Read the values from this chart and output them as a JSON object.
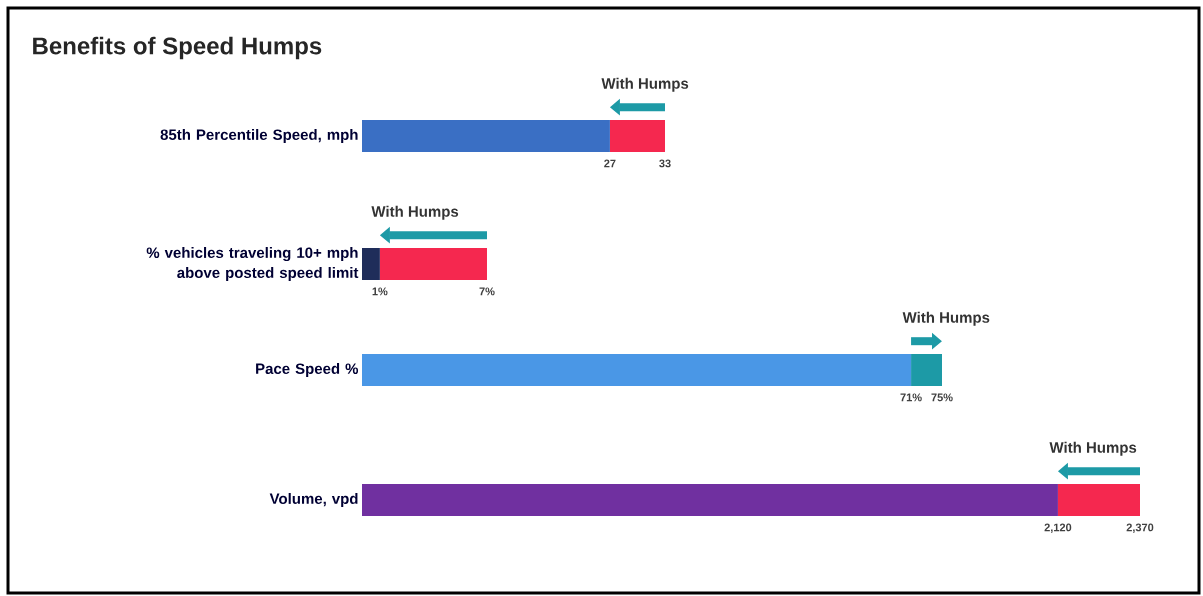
{
  "chart_data": [
    {
      "type": "bar",
      "orientation": "horizontal",
      "stacked": true,
      "title": "Benefits of Speed Humps",
      "categories": [
        "85th Percentile Speed, mph"
      ],
      "xlim": [
        0,
        33
      ],
      "xticks": [
        27,
        33
      ],
      "series": [
        {
          "color": "#3a6fc4",
          "values": [
            27
          ]
        },
        {
          "color": "#f5284f",
          "values": [
            6
          ]
        }
      ],
      "annotations": [
        "With Humps"
      ]
    },
    {
      "type": "bar",
      "orientation": "horizontal",
      "stacked": true,
      "categories": [
        "% vehicles traveling 10+ mph above posted speed limit"
      ],
      "xlim": [
        0,
        7
      ],
      "xticks": [
        {
          "value": 1,
          "label": "1%"
        },
        {
          "value": 7,
          "label": "7%"
        }
      ],
      "series": [
        {
          "color": "#1f2d5a",
          "values": [
            1
          ]
        },
        {
          "color": "#f5284f",
          "values": [
            6
          ]
        }
      ],
      "annotations": [
        "With Humps"
      ]
    },
    {
      "type": "bar",
      "orientation": "horizontal",
      "stacked": true,
      "categories": [
        "Pace Speed %"
      ],
      "xlim": [
        0,
        75
      ],
      "xticks": [
        {
          "value": 71,
          "label": "71%"
        },
        {
          "value": 75,
          "label": "75%"
        }
      ],
      "series": [
        {
          "color": "#4a97e6",
          "values": [
            71
          ]
        },
        {
          "color": "#1d9aa6",
          "values": [
            4
          ]
        }
      ],
      "annotations": [
        "With Humps"
      ]
    },
    {
      "type": "bar",
      "orientation": "horizontal",
      "stacked": true,
      "categories": [
        "Volume, vpd"
      ],
      "xlim": [
        0,
        2370
      ],
      "xticks": [
        {
          "value": 2120,
          "label": "2,120"
        },
        {
          "value": 2370,
          "label": "2,370"
        }
      ],
      "series": [
        {
          "color": "#7030a0",
          "values": [
            2120
          ]
        },
        {
          "color": "#f5284f",
          "values": [
            250
          ]
        }
      ],
      "annotations": [
        "With Humps"
      ]
    }
  ]
}
